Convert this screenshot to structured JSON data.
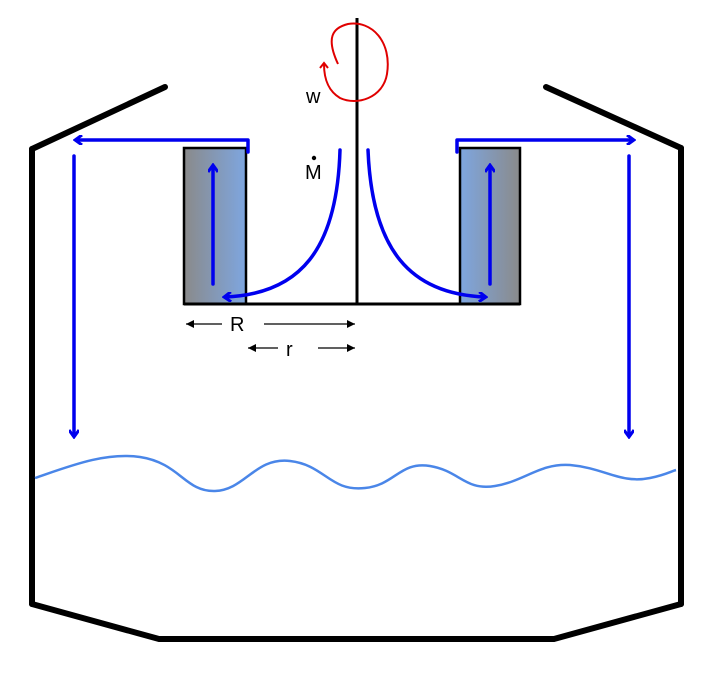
{
  "labels": {
    "omega": "w",
    "mass_flow": "M",
    "outer_radius": "R",
    "inner_radius": "r"
  },
  "colors": {
    "vessel": "#000000",
    "flow_arrows": "#0000ee",
    "rotation_arrow": "#e00000",
    "liquid_surface": "#4a86e8",
    "rotor_dark": "#8a8a8a",
    "rotor_light": "#7ea6e0"
  }
}
